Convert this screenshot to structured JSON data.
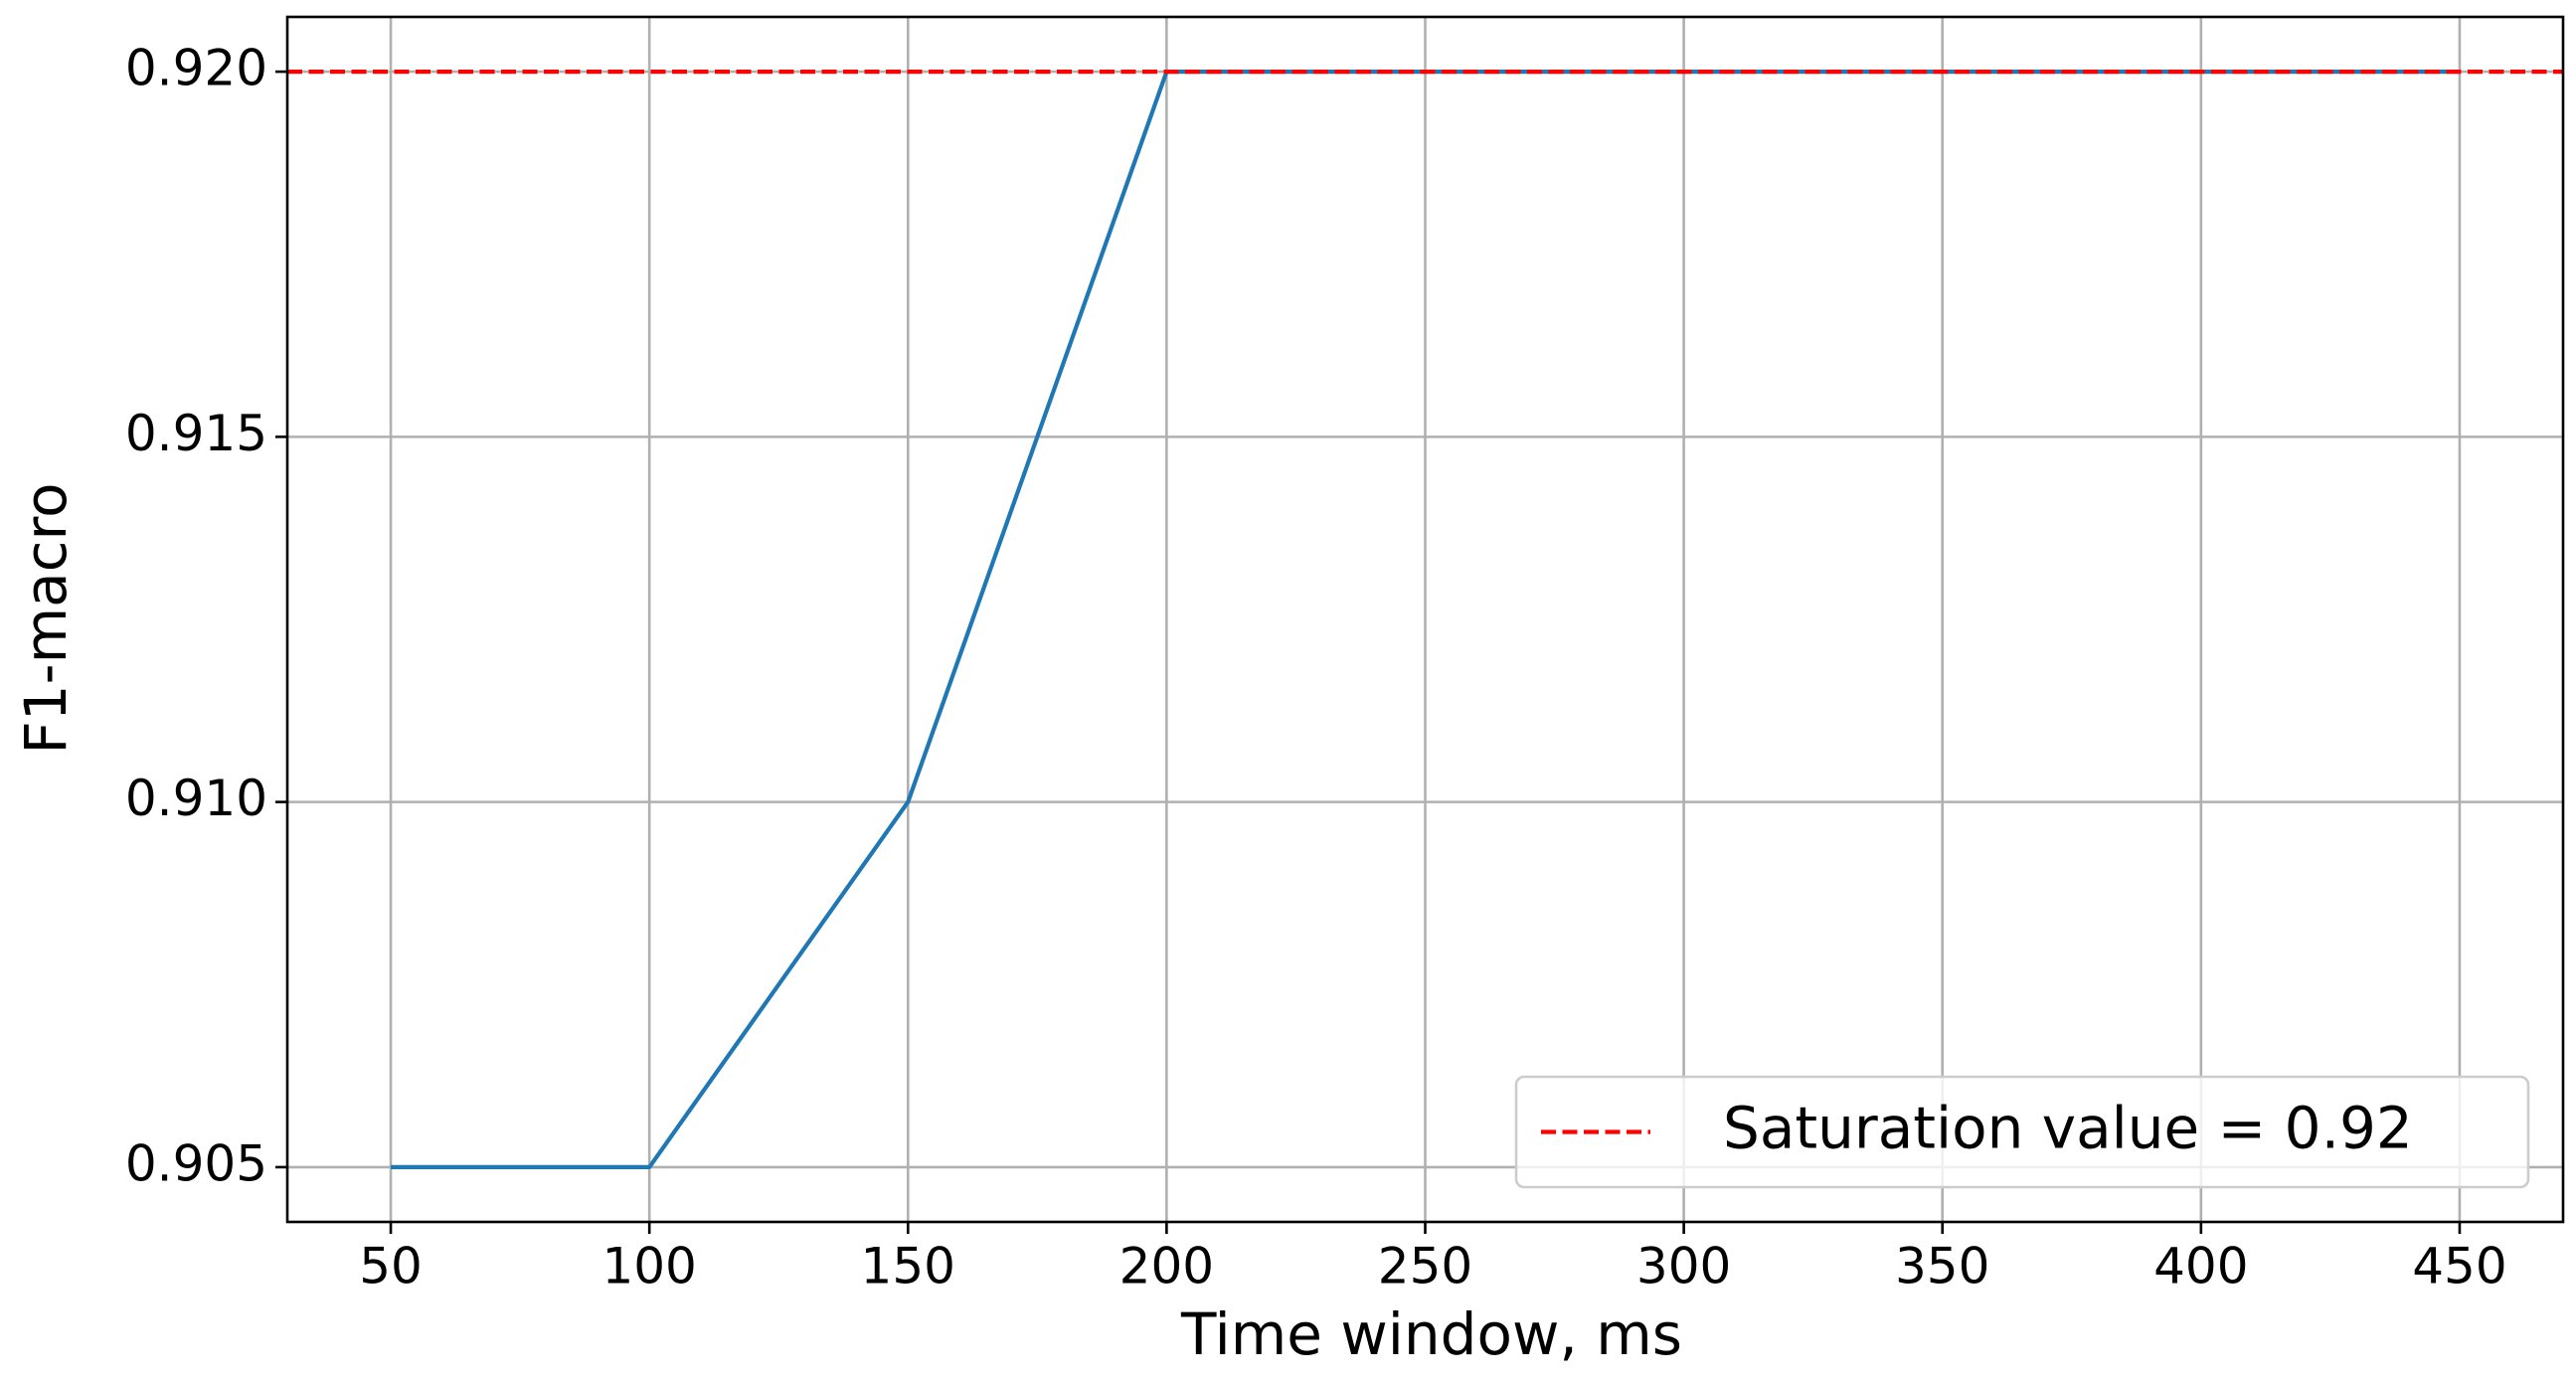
{
  "chart_data": {
    "type": "line",
    "x_label": "Time window, ms",
    "y_label": "F1-macro",
    "x": [
      50,
      100,
      150,
      200,
      250,
      300,
      350,
      400,
      450
    ],
    "series": [
      {
        "color": "#1f77b4",
        "values": [
          0.905,
          0.905,
          0.91,
          0.92,
          0.92,
          0.92,
          0.92,
          0.92,
          0.92
        ]
      }
    ],
    "hlines": [
      {
        "name": "Saturation value = 0.92",
        "y": 0.92,
        "color": "#ff0000",
        "style": "dashed"
      }
    ],
    "xlim": [
      30,
      470
    ],
    "xticks": [
      50,
      100,
      150,
      200,
      250,
      300,
      350,
      400,
      450
    ],
    "ylim": [
      0.90425,
      0.92075
    ],
    "yticks": [
      0.905,
      {
        "value": 0.91,
        "label": "0.910"
      },
      0.915,
      {
        "value": 0.92,
        "label": "0.920"
      }
    ],
    "grid": true,
    "legend": "lower right"
  }
}
